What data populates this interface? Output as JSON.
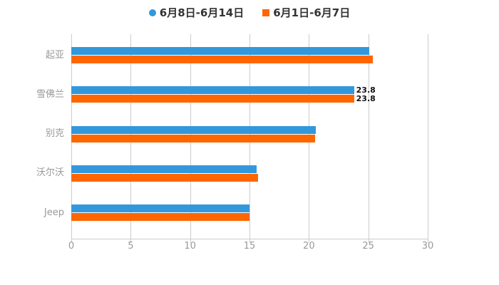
{
  "chart_data": {
    "type": "bar",
    "orientation": "horizontal",
    "title": "",
    "xlabel": "",
    "ylabel": "",
    "categories": [
      "起亚",
      "雪佛兰",
      "别克",
      "沃尔沃",
      "Jeep"
    ],
    "series": [
      {
        "name": "6月8日-6月14日",
        "color": "#3398DB",
        "legend_marker": "circle",
        "values": [
          25.1,
          23.8,
          20.6,
          15.6,
          15.0
        ],
        "data_labels": [
          null,
          "23.8",
          null,
          null,
          null
        ]
      },
      {
        "name": "6月1日-6月7日",
        "color": "#FF6600",
        "legend_marker": "square",
        "values": [
          25.4,
          23.8,
          20.5,
          15.7,
          15.0
        ],
        "data_labels": [
          null,
          "23.8",
          null,
          null,
          null
        ]
      }
    ],
    "xlim": [
      0,
      30
    ],
    "x_ticks": [
      "0",
      "5",
      "10",
      "15",
      "20",
      "25",
      "30"
    ],
    "grid": true,
    "legend_position": "top",
    "colors": {
      "grid": "#cccccc",
      "axis": "#cccccc",
      "tick_label": "#999999",
      "category_label": "#999999",
      "legend_text": "#333333",
      "data_label": "#111111",
      "background": "#ffffff"
    }
  }
}
